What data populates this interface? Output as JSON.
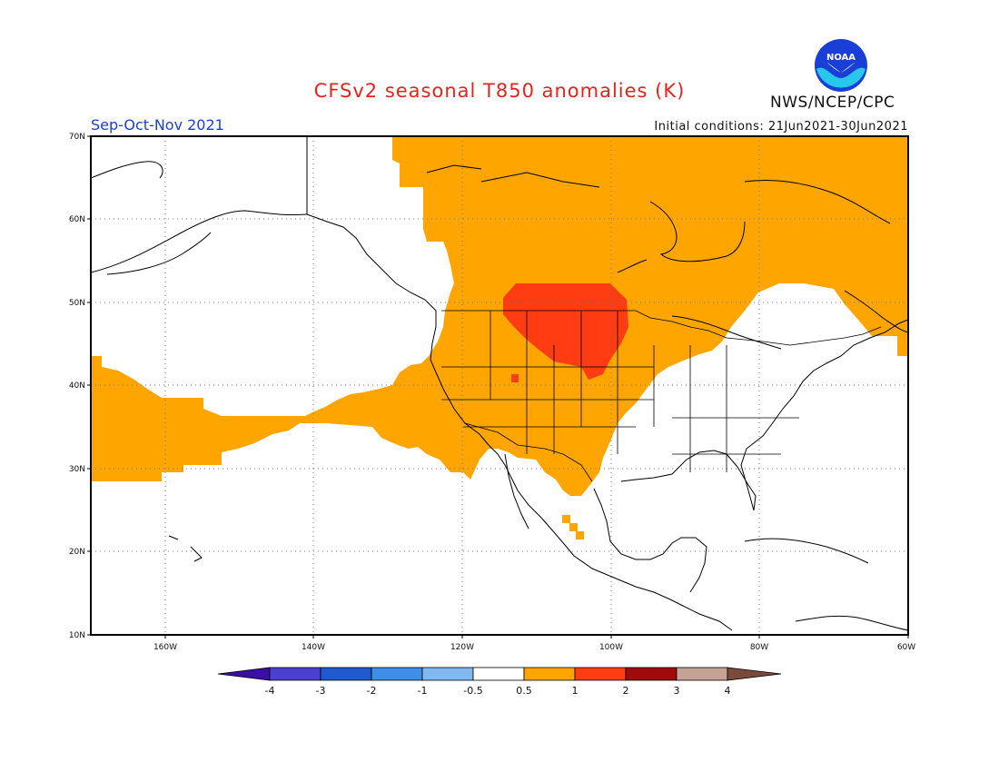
{
  "title": "CFSv2 seasonal T850 anomalies (K)",
  "period": "Sep-Oct-Nov 2021",
  "initial_conditions": "Initial conditions: 21Jun2021-30Jun2021",
  "agency": "NWS/NCEP/CPC",
  "logo_text": "NOAA",
  "lat_labels": [
    "70N",
    "60N",
    "50N",
    "40N",
    "30N",
    "20N",
    "10N"
  ],
  "lon_labels": [
    "160W",
    "140W",
    "120W",
    "100W",
    "80W",
    "60W"
  ],
  "colorbar": {
    "labels": [
      "-4",
      "-3",
      "-2",
      "-1",
      "-0.5",
      "0.5",
      "1",
      "2",
      "3",
      "4"
    ],
    "colors": [
      "#3a0fa8",
      "#4a3fd0",
      "#1f5ad1",
      "#3f8ee8",
      "#80b8f0",
      "#ffffff",
      "#ffa500",
      "#ff3c12",
      "#a10a0a",
      "#c6a294",
      "#7a4a3a"
    ]
  }
}
